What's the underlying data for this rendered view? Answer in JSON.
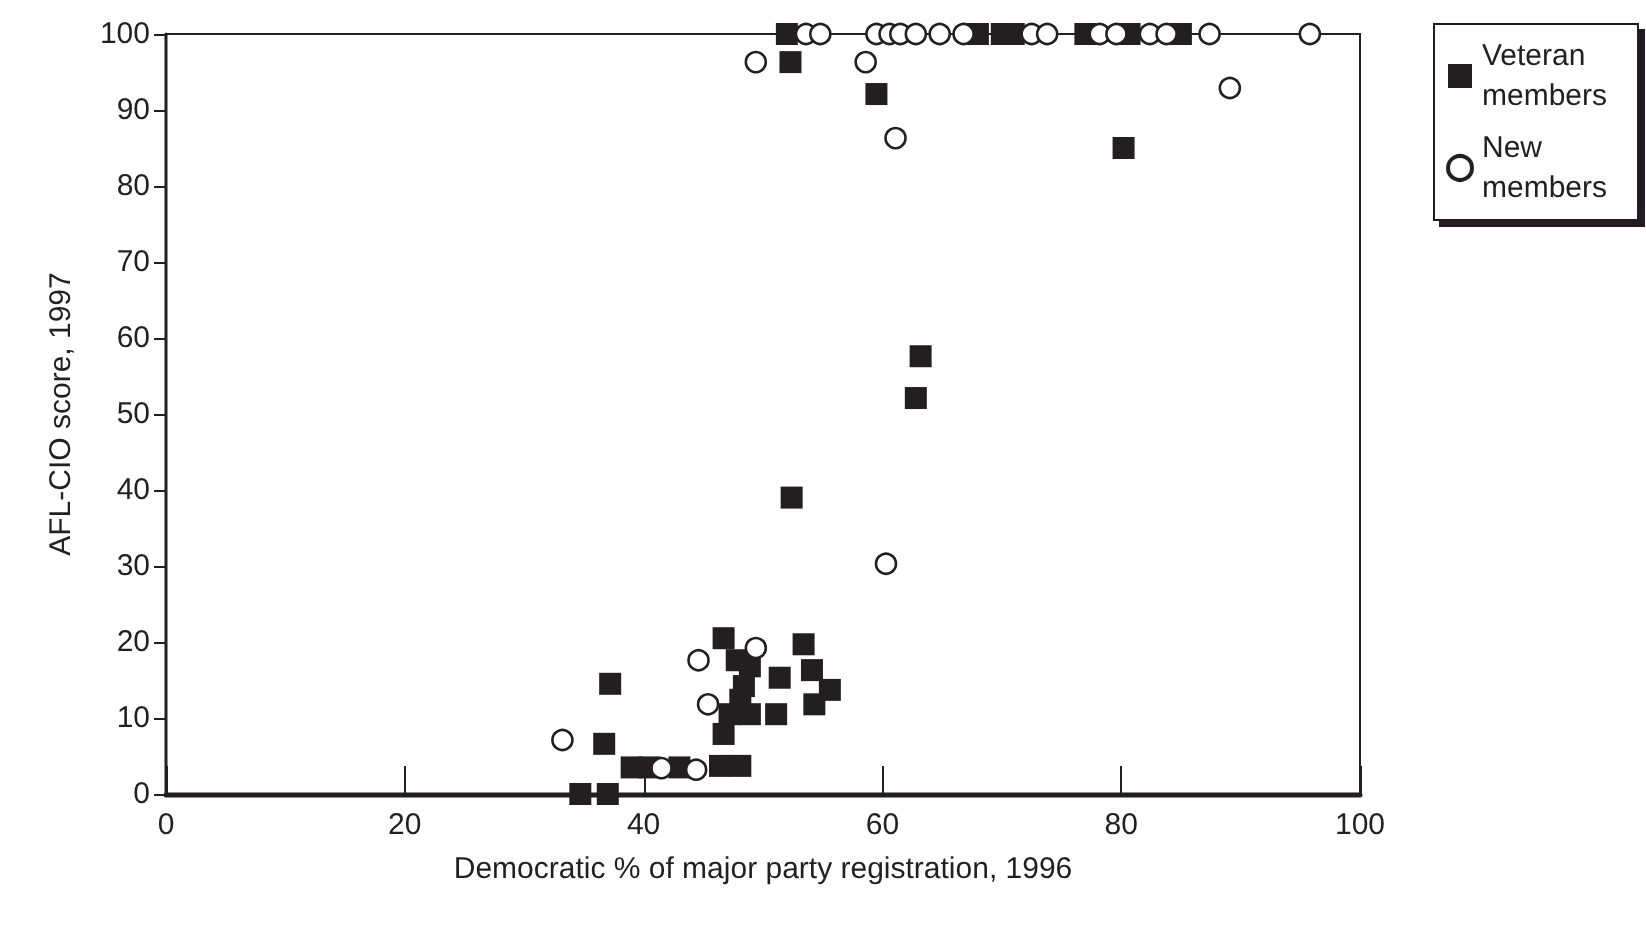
{
  "chart_data": {
    "type": "scatter",
    "xlabel": "Democratic % of major party registration, 1996",
    "ylabel": "AFL-CIO score, 1997",
    "xlim": [
      0,
      100
    ],
    "xticks": [
      0,
      20,
      40,
      60,
      80,
      100
    ],
    "ylim": [
      0,
      100
    ],
    "yticks": [
      0,
      10,
      20,
      30,
      40,
      50,
      60,
      70,
      80,
      90,
      100
    ],
    "grid": false,
    "legend": "top right",
    "series": [
      {
        "name": "Veteran members",
        "marker": "square",
        "color": "#231f20",
        "x": [
          52,
          68,
          70,
          71,
          77,
          80.7,
          85,
          52.3,
          59.5,
          80.2,
          63.2,
          62.8,
          52.4,
          46.7,
          47.8,
          48.9,
          48.4,
          48.1,
          47.2,
          48.9,
          46.7,
          51.4,
          51.1,
          53.4,
          54.1,
          55.6,
          54.3,
          46.4,
          48.1,
          37.2,
          36.7,
          34.7,
          37,
          39,
          40.5,
          43
        ],
        "values": [
          100,
          100,
          100,
          100,
          100,
          100,
          100,
          96.3,
          92.1,
          85,
          57.6,
          52.1,
          39,
          20.5,
          17.6,
          16.8,
          14.2,
          12.4,
          10.5,
          10.5,
          7.9,
          15.3,
          10.5,
          19.7,
          16.3,
          13.7,
          11.8,
          3.7,
          3.7,
          14.5,
          6.6,
          0,
          0,
          3.5,
          3.5,
          3.5
        ]
      },
      {
        "name": "New members",
        "marker": "circle",
        "color": "#231f20",
        "x": [
          44.6,
          49.4,
          45.4,
          41.5,
          44.4,
          33.2,
          60.3,
          49.4,
          58.6,
          61.1,
          89.1,
          53.6,
          54.8,
          59.5,
          60.6,
          61.5,
          62.8,
          64.8,
          66.8,
          72.5,
          73.8,
          78.2,
          79.6,
          82.4,
          83.8,
          87.4,
          95.8
        ],
        "values": [
          17.6,
          19.2,
          11.8,
          3.4,
          3.2,
          7.1,
          30.3,
          96.3,
          96.3,
          86.3,
          92.9,
          100,
          100,
          100,
          100,
          100,
          100,
          100,
          100,
          100,
          100,
          100,
          100,
          100,
          100,
          100,
          100
        ]
      }
    ]
  }
}
